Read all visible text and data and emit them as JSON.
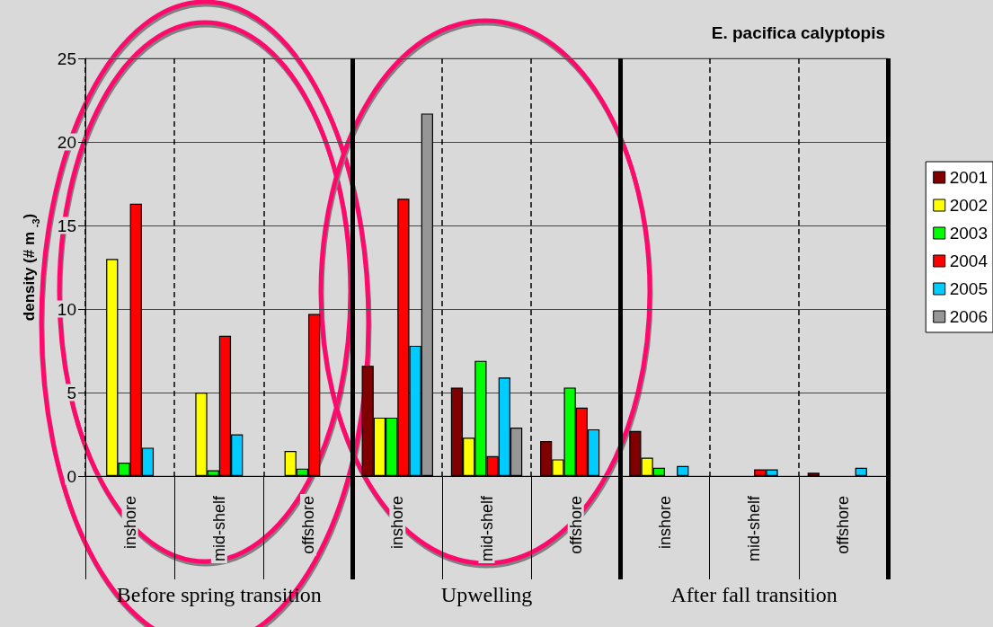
{
  "chart_data": {
    "type": "bar",
    "title": "E. pacifica calyptopis",
    "ylabel": "density (# m $^{-3}$)",
    "categories": [
      "inshore",
      "mid-shelf",
      "offshore",
      "inshore",
      "mid-shelf",
      "offshore",
      "inshore",
      "mid-shelf",
      "offshore"
    ],
    "series": [
      {
        "name": "2001",
        "color": "#800000",
        "values": [
          null,
          null,
          null,
          6.6,
          5.3,
          2.1,
          2.7,
          null,
          0.2
        ]
      },
      {
        "name": "2002",
        "color": "#ffff00",
        "values": [
          13.0,
          5.0,
          1.5,
          3.5,
          2.3,
          1.0,
          1.1,
          null,
          null
        ]
      },
      {
        "name": "2003",
        "color": "#00ff00",
        "values": [
          0.8,
          0.35,
          0.45,
          3.5,
          6.9,
          5.3,
          0.5,
          null,
          null
        ]
      },
      {
        "name": "2004",
        "color": "#ff0000",
        "values": [
          16.3,
          8.4,
          9.7,
          16.6,
          1.2,
          4.1,
          null,
          0.4,
          null
        ]
      },
      {
        "name": "2005",
        "color": "#00ccff",
        "values": [
          1.7,
          2.5,
          null,
          7.8,
          5.9,
          2.8,
          0.6,
          0.4,
          0.5
        ]
      },
      {
        "name": "2006",
        "color": "#969696",
        "values": [
          null,
          null,
          null,
          21.7,
          2.9,
          null,
          null,
          null,
          null
        ]
      }
    ],
    "ylim": [
      0,
      25
    ],
    "yticks": [
      0,
      5,
      10,
      15,
      20,
      25
    ],
    "grid": "y",
    "legend": "right",
    "annotations": [
      "Before spring transition",
      "Upwelling",
      "After fall transition"
    ]
  }
}
